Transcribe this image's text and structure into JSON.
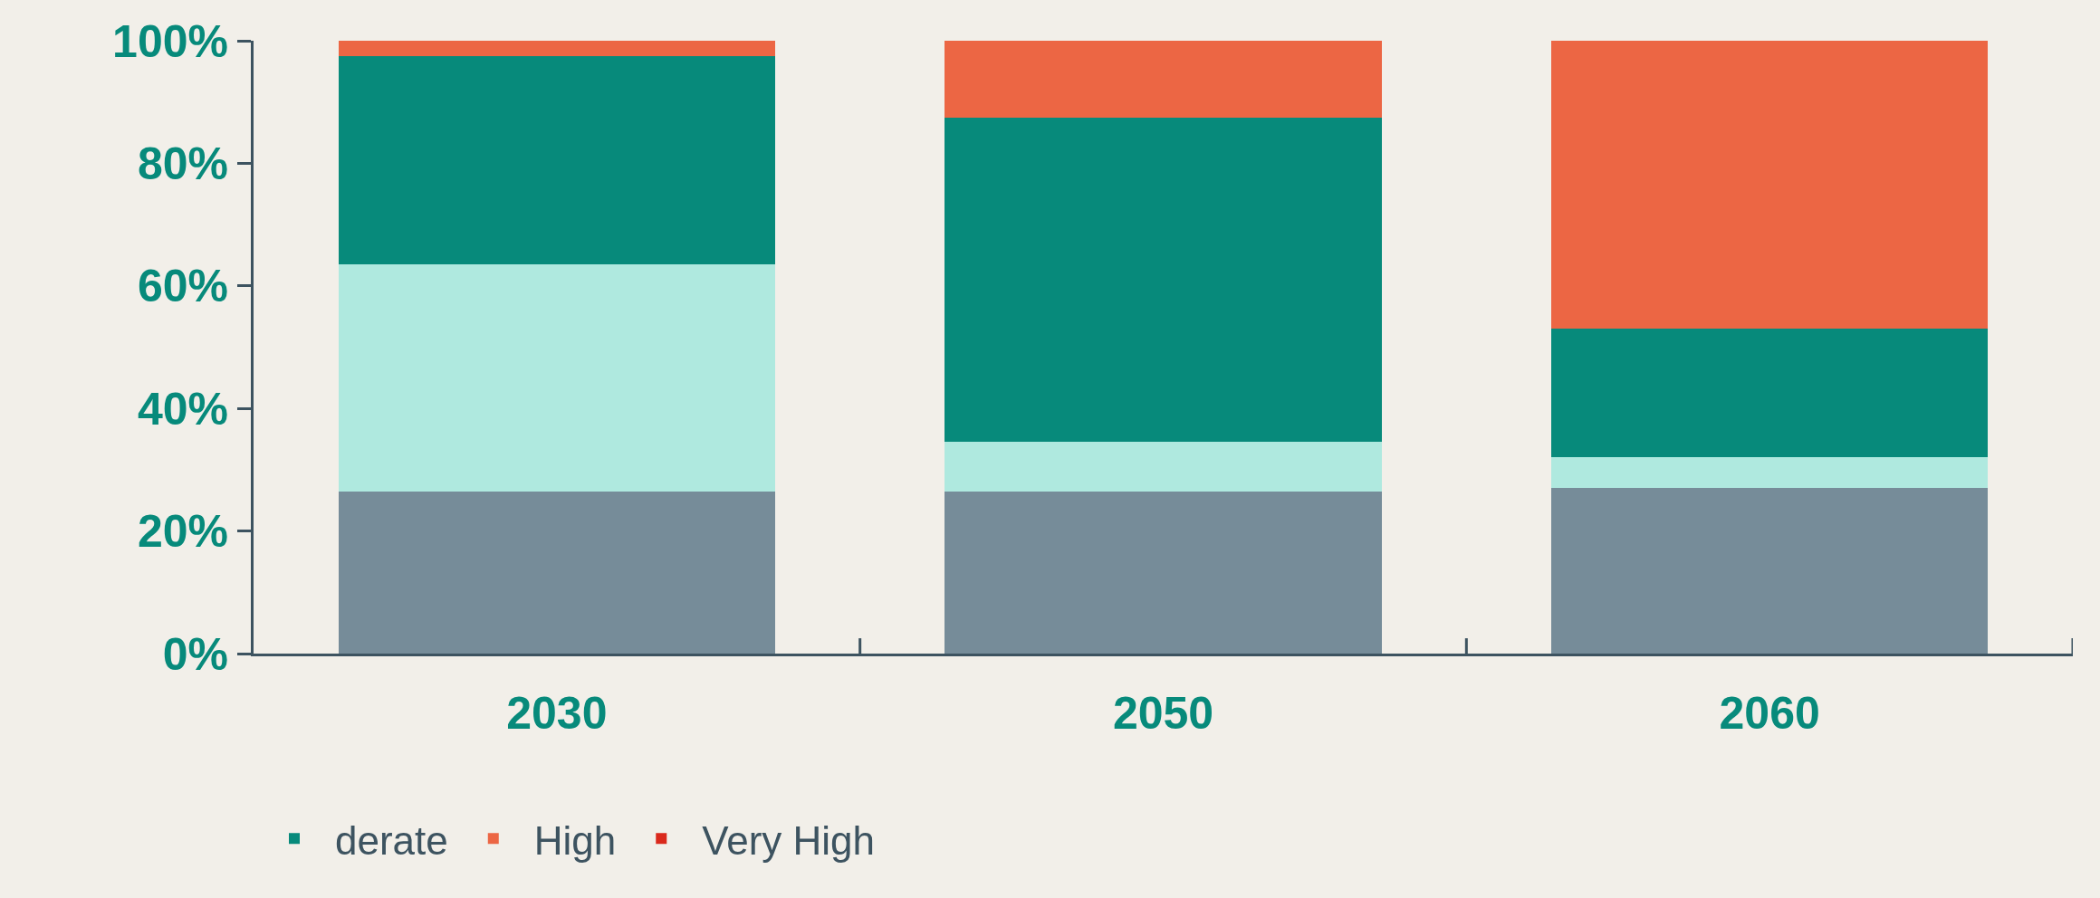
{
  "chart_data": {
    "type": "bar",
    "stacked": true,
    "categories": [
      "2030",
      "2050",
      "2060"
    ],
    "series": [
      {
        "color": "#768c99",
        "values": [
          26.5,
          26.5,
          27
        ]
      },
      {
        "color": "#afe9df",
        "values": [
          37,
          8,
          5
        ]
      },
      {
        "name": "derate",
        "color": "#078a7b",
        "values": [
          34,
          53,
          21
        ]
      },
      {
        "name": "High",
        "color": "#ec6644",
        "values": [
          2.5,
          12.5,
          47
        ]
      },
      {
        "name": "Very High",
        "color": "#da291c",
        "values": [
          0,
          0,
          0
        ]
      }
    ],
    "ylim": [
      0,
      100
    ],
    "yticks": [
      {
        "value": 0,
        "label": "0%"
      },
      {
        "value": 20,
        "label": "20%"
      },
      {
        "value": 40,
        "label": "40%"
      },
      {
        "value": 60,
        "label": "60%"
      },
      {
        "value": 80,
        "label": "80%"
      },
      {
        "value": 100,
        "label": "100%"
      }
    ],
    "grid": false,
    "legend": "bottom"
  }
}
